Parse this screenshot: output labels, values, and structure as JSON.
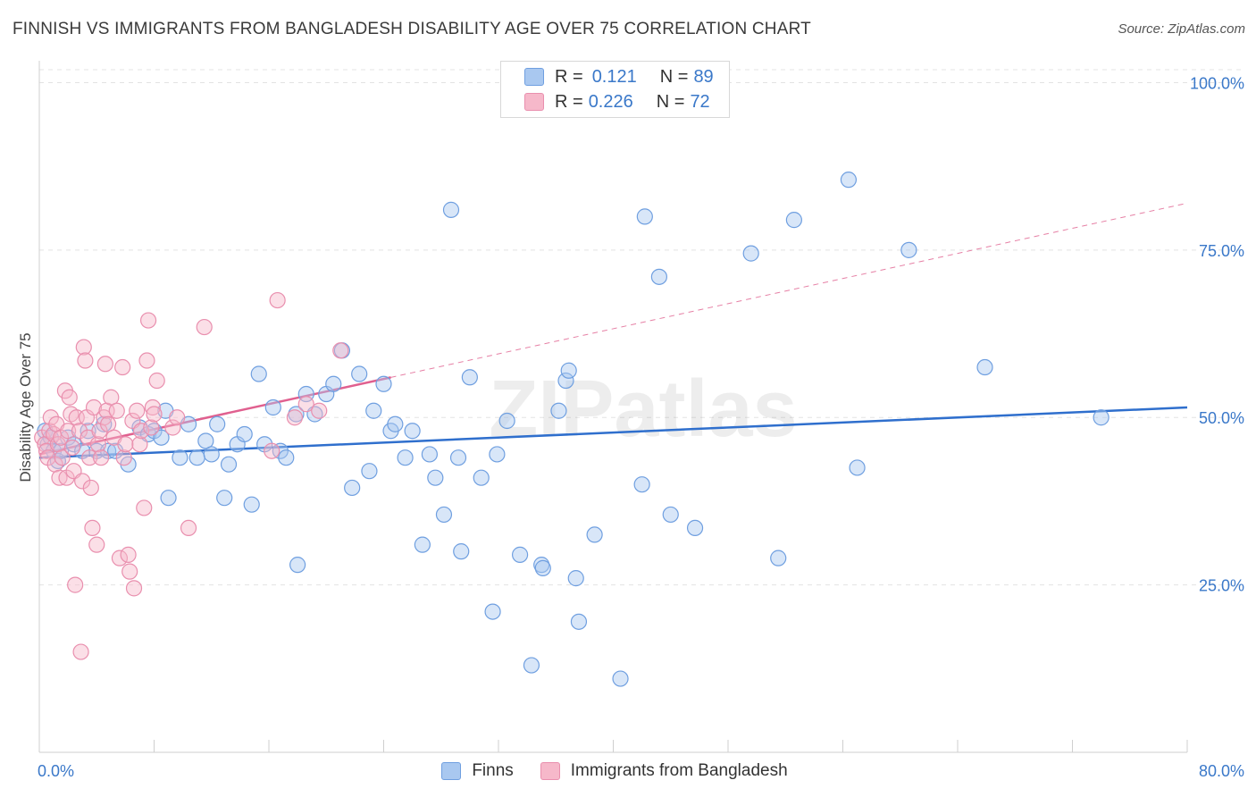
{
  "title": "FINNISH VS IMMIGRANTS FROM BANGLADESH DISABILITY AGE OVER 75 CORRELATION CHART",
  "source": "Source: ZipAtlas.com",
  "watermark": "ZIPatlas",
  "legend": {
    "rows": [
      {
        "r_label": "R =",
        "r_value": "0.121",
        "n_label": "N =",
        "n_value": "89"
      },
      {
        "r_label": "R =",
        "r_value": "0.226",
        "n_label": "N =",
        "n_value": "72"
      }
    ]
  },
  "bottom_legend": {
    "finns": "Finns",
    "bangladesh": "Immigrants from Bangladesh"
  },
  "colors": {
    "blue_fill": "#a9c8f0",
    "blue_stroke": "#6f9fe0",
    "blue_line": "#2f6fcd",
    "pink_fill": "#f6b8ca",
    "pink_stroke": "#e98fae",
    "pink_line": "#e0608f",
    "axis_label": "#3a78c9",
    "grid": "#e3e3e3"
  },
  "chart_data": {
    "type": "scatter",
    "title": "FINNISH VS IMMIGRANTS FROM BANGLADESH DISABILITY AGE OVER 75 CORRELATION CHART",
    "xlabel": "",
    "ylabel": "Disability Age Over 75",
    "xlim": [
      0,
      80
    ],
    "ylim": [
      0,
      105
    ],
    "x_tick_labels": [
      "0.0%",
      "80.0%"
    ],
    "y_ticks": [
      25,
      50,
      75,
      100
    ],
    "y_tick_labels": [
      "25.0%",
      "50.0%",
      "75.0%",
      "100.0%"
    ],
    "grid": true,
    "legend_position": "top-center",
    "series": [
      {
        "name": "Finns",
        "trend": {
          "x": [
            0,
            80
          ],
          "y": [
            44.0,
            51.5
          ]
        },
        "points": [
          [
            0.4,
            48
          ],
          [
            0.6,
            46
          ],
          [
            0.8,
            47
          ],
          [
            1,
            45
          ],
          [
            1.3,
            43.5
          ],
          [
            1.5,
            45
          ],
          [
            2,
            47
          ],
          [
            2.4,
            46
          ],
          [
            3,
            45
          ],
          [
            3.4,
            48
          ],
          [
            4,
            45
          ],
          [
            4.5,
            49
          ],
          [
            4.8,
            45
          ],
          [
            5.3,
            45
          ],
          [
            6.2,
            43
          ],
          [
            7,
            48.5
          ],
          [
            7.6,
            47.5
          ],
          [
            8,
            48
          ],
          [
            8.5,
            47
          ],
          [
            8.8,
            51
          ],
          [
            9,
            38
          ],
          [
            9.8,
            44
          ],
          [
            10.4,
            49
          ],
          [
            11,
            44
          ],
          [
            11.6,
            46.5
          ],
          [
            12,
            44.5
          ],
          [
            12.4,
            49
          ],
          [
            12.9,
            38
          ],
          [
            13.2,
            43
          ],
          [
            13.8,
            46
          ],
          [
            14.3,
            47.5
          ],
          [
            14.8,
            37
          ],
          [
            15.3,
            56.5
          ],
          [
            15.7,
            46
          ],
          [
            16.3,
            51.5
          ],
          [
            16.8,
            45
          ],
          [
            17.2,
            44
          ],
          [
            17.9,
            50.5
          ],
          [
            18,
            28
          ],
          [
            18.6,
            53.5
          ],
          [
            19.2,
            50.5
          ],
          [
            20,
            53.5
          ],
          [
            20.5,
            55
          ],
          [
            21.1,
            60
          ],
          [
            21.8,
            39.5
          ],
          [
            22.3,
            56.5
          ],
          [
            23,
            42
          ],
          [
            23.3,
            51
          ],
          [
            24,
            55
          ],
          [
            24.5,
            48
          ],
          [
            24.8,
            49
          ],
          [
            25.5,
            44
          ],
          [
            26,
            48
          ],
          [
            26.7,
            31
          ],
          [
            27.2,
            44.5
          ],
          [
            27.6,
            41
          ],
          [
            28.2,
            35.5
          ],
          [
            28.7,
            81
          ],
          [
            29.2,
            44
          ],
          [
            29.4,
            30
          ],
          [
            30,
            56
          ],
          [
            30.8,
            41
          ],
          [
            31.6,
            21
          ],
          [
            31.9,
            44.5
          ],
          [
            32.6,
            49.5
          ],
          [
            33.5,
            29.5
          ],
          [
            34.3,
            13
          ],
          [
            35,
            28
          ],
          [
            35.1,
            27.5
          ],
          [
            36.2,
            51
          ],
          [
            36.7,
            55.5
          ],
          [
            36.9,
            57
          ],
          [
            37.4,
            26
          ],
          [
            37.6,
            19.5
          ],
          [
            38.7,
            32.5
          ],
          [
            40.5,
            11
          ],
          [
            42,
            40
          ],
          [
            42.2,
            80
          ],
          [
            43.2,
            71
          ],
          [
            44,
            35.5
          ],
          [
            45.7,
            33.5
          ],
          [
            49.6,
            74.5
          ],
          [
            51.5,
            29
          ],
          [
            52.6,
            79.5
          ],
          [
            56.4,
            85.5
          ],
          [
            57,
            42.5
          ],
          [
            60.6,
            75
          ],
          [
            65.9,
            57.5
          ],
          [
            74,
            50
          ]
        ]
      },
      {
        "name": "Immigrants from Bangladesh",
        "trend": {
          "x": [
            0,
            80
          ],
          "y": [
            44.5,
            82.0
          ]
        },
        "trend_solid_to_x": 24.5,
        "points": [
          [
            0.2,
            47
          ],
          [
            0.4,
            46
          ],
          [
            0.5,
            45
          ],
          [
            0.6,
            44
          ],
          [
            0.7,
            48
          ],
          [
            0.8,
            50
          ],
          [
            1,
            47.5
          ],
          [
            1.1,
            43
          ],
          [
            1.2,
            49
          ],
          [
            1.3,
            46
          ],
          [
            1.4,
            41
          ],
          [
            1.5,
            47
          ],
          [
            1.6,
            44
          ],
          [
            1.8,
            54
          ],
          [
            1.9,
            41
          ],
          [
            2,
            48
          ],
          [
            2.1,
            53
          ],
          [
            2.2,
            50.5
          ],
          [
            2.3,
            45.5
          ],
          [
            2.4,
            42
          ],
          [
            2.5,
            25
          ],
          [
            2.6,
            50
          ],
          [
            2.8,
            48
          ],
          [
            2.9,
            15
          ],
          [
            3,
            40.5
          ],
          [
            3.1,
            60.5
          ],
          [
            3.2,
            58.5
          ],
          [
            3.3,
            50
          ],
          [
            3.4,
            47
          ],
          [
            3.5,
            44
          ],
          [
            3.6,
            39.5
          ],
          [
            3.7,
            33.5
          ],
          [
            3.8,
            51.5
          ],
          [
            4,
            31
          ],
          [
            4.1,
            46
          ],
          [
            4.2,
            48
          ],
          [
            4.3,
            44
          ],
          [
            4.5,
            50
          ],
          [
            4.6,
            58
          ],
          [
            4.7,
            51
          ],
          [
            4.8,
            49
          ],
          [
            5,
            53
          ],
          [
            5.2,
            47
          ],
          [
            5.4,
            51
          ],
          [
            5.6,
            29
          ],
          [
            5.8,
            57.5
          ],
          [
            5.9,
            44
          ],
          [
            6,
            46
          ],
          [
            6.2,
            29.5
          ],
          [
            6.3,
            27
          ],
          [
            6.5,
            49.5
          ],
          [
            6.6,
            24.5
          ],
          [
            6.8,
            51
          ],
          [
            7,
            46
          ],
          [
            7.1,
            48
          ],
          [
            7.3,
            36.5
          ],
          [
            7.5,
            58.5
          ],
          [
            7.6,
            64.5
          ],
          [
            7.8,
            48.5
          ],
          [
            7.9,
            51.5
          ],
          [
            8,
            50.5
          ],
          [
            8.2,
            55.5
          ],
          [
            9.3,
            48.5
          ],
          [
            9.6,
            50
          ],
          [
            10.4,
            33.5
          ],
          [
            11.5,
            63.5
          ],
          [
            16.2,
            45
          ],
          [
            16.6,
            67.5
          ],
          [
            17.8,
            50
          ],
          [
            18.6,
            52
          ],
          [
            19.5,
            51
          ],
          [
            21,
            60
          ]
        ]
      }
    ]
  }
}
